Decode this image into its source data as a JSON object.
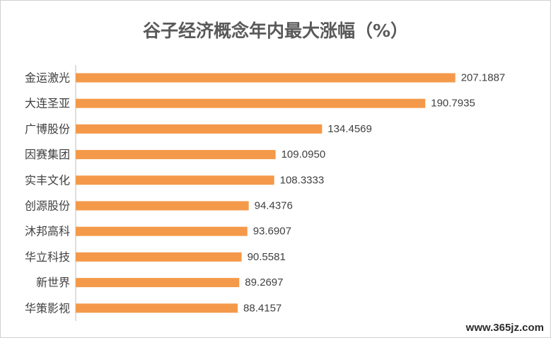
{
  "chart_data": {
    "type": "bar",
    "orientation": "horizontal",
    "title": "谷子经济概念年内最大涨幅（%）",
    "categories": [
      "金运激光",
      "大连圣亚",
      "广博股份",
      "因赛集团",
      "实丰文化",
      "创源股份",
      "沐邦高科",
      "华立科技",
      "新世界",
      "华策影视"
    ],
    "values": [
      207.1887,
      190.7935,
      134.4569,
      109.095,
      108.3333,
      94.4376,
      93.6907,
      90.5581,
      89.2697,
      88.4157
    ],
    "value_labels": [
      "207.1887",
      "190.7935",
      "134.4569",
      "109.0950",
      "108.3333",
      "94.4376",
      "93.6907",
      "90.5581",
      "89.2697",
      "88.4157"
    ],
    "xlim": [
      0,
      210
    ],
    "grid": false,
    "legend": "none",
    "bar_color": "#f4994a",
    "axis_color": "#bfbfbf"
  },
  "watermark": "www.365jz.com"
}
